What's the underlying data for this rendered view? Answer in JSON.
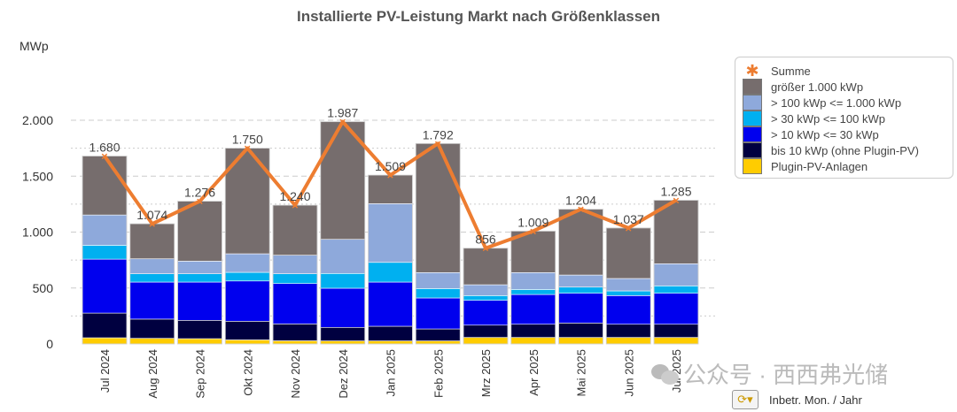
{
  "chart_data": {
    "type": "bar",
    "stacked": true,
    "title": "Installierte PV-Leistung Markt nach Größenklassen",
    "ylabel": "MWp",
    "xlabel": "Inbetr. Mon. / Jahr",
    "ylim": [
      0,
      2100
    ],
    "yticks": [
      0,
      500,
      1000,
      1500,
      2000
    ],
    "ytick_labels": [
      "0",
      "500",
      "1.000",
      "1.500",
      "2.000"
    ],
    "grid": true,
    "legend_position": "right",
    "categories": [
      "Jul 2024",
      "Aug 2024",
      "Sep 2024",
      "Okt 2024",
      "Nov 2024",
      "Dez 2024",
      "Jan 2025",
      "Feb 2025",
      "Mrz 2025",
      "Apr 2025",
      "Mai 2025",
      "Jun 2025",
      "Jul 2025"
    ],
    "series": [
      {
        "name": "Plugin-PV-Anlagen",
        "color": "#FFCC00",
        "values": [
          55,
          50,
          47,
          36,
          28,
          27,
          27,
          27,
          58,
          58,
          58,
          58,
          58
        ]
      },
      {
        "name": "bis 10 kWp (ohne Plugin-PV)",
        "color": "#000040",
        "values": [
          221,
          172,
          164,
          167,
          151,
          121,
          131,
          107,
          110,
          118,
          129,
          118,
          118
        ]
      },
      {
        "name": "> 10 kWp <= 30 kWp",
        "color": "#0000EE",
        "values": [
          482,
          331,
          342,
          360,
          361,
          350,
          395,
          277,
          222,
          266,
          266,
          256,
          277
        ]
      },
      {
        "name": "> 30 kWp <= 100 kWp",
        "color": "#00B0F0",
        "values": [
          124,
          74,
          74,
          77,
          87,
          132,
          176,
          84,
          42,
          45,
          55,
          42,
          66
        ]
      },
      {
        "name": "> 100 kWp <= 1.000 kWp",
        "color": "#8EA9DB",
        "values": [
          271,
          134,
          113,
          166,
          166,
          305,
          525,
          143,
          97,
          151,
          108,
          111,
          198
        ]
      },
      {
        "name": "größer 1.000 kWp",
        "color": "#766D6D",
        "values": [
          527,
          313,
          536,
          944,
          447,
          1052,
          255,
          1154,
          327,
          371,
          588,
          452,
          568
        ]
      }
    ],
    "line": {
      "name": "Summe",
      "color": "#ED7D31",
      "values": [
        1680,
        1074,
        1276,
        1750,
        1240,
        1987,
        1509,
        1792,
        856,
        1009,
        1204,
        1037,
        1285
      ],
      "labels": [
        "1.680",
        "1.074",
        "1.276",
        "1.750",
        "1.240",
        "1.987",
        "1.509",
        "1.792",
        "856",
        "1.009",
        "1.204",
        "1.037",
        "1.285"
      ]
    }
  },
  "watermark": "公众号 · 西西弗光储",
  "legend_order": [
    "Summe",
    "größer 1.000 kWp",
    "> 100 kWp <= 1.000 kWp",
    "> 30 kWp <= 100 kWp",
    "> 10 kWp <= 30 kWp",
    "bis 10 kWp (ohne Plugin-PV)",
    "Plugin-PV-Anlagen"
  ]
}
